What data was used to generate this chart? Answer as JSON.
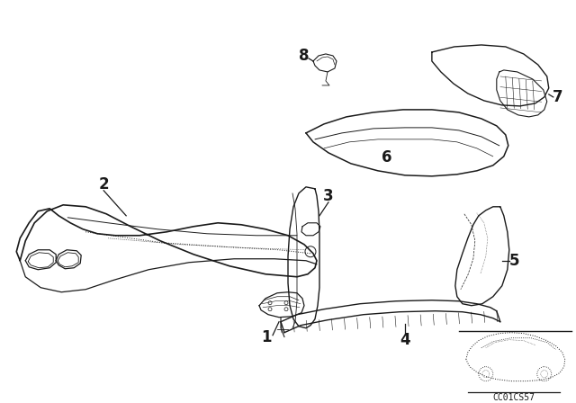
{
  "bg_color": "#ffffff",
  "line_color": "#1a1a1a",
  "fig_width": 6.4,
  "fig_height": 4.48,
  "dpi": 100,
  "diagram_code": "CC01CS57"
}
